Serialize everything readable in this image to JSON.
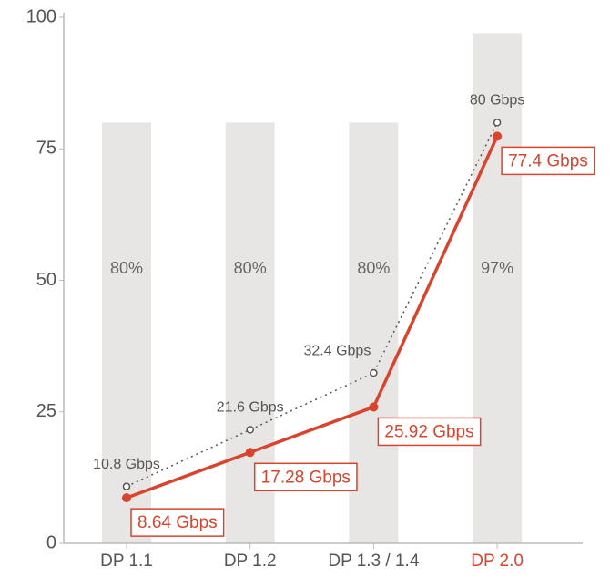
{
  "chart_data": {
    "type": "combo",
    "categories": [
      "DP 1.1",
      "DP 1.2",
      "DP 1.3 / 1.4",
      "DP 2.0"
    ],
    "category_label_colors": [
      "#555555",
      "#555555",
      "#555555",
      "#d9442f"
    ],
    "ylim": [
      0,
      100
    ],
    "yticks": [
      0,
      25,
      50,
      75,
      100
    ],
    "series": [
      {
        "type": "bar",
        "color": "#e8e6e4",
        "values": [
          80,
          80,
          80,
          97
        ],
        "value_labels": [
          "80%",
          "80%",
          "80%",
          "97%"
        ]
      },
      {
        "type": "dotted-line",
        "color": "#555555",
        "values": [
          10.8,
          21.6,
          32.4,
          80
        ],
        "value_labels": [
          "10.8 Gbps",
          "21.6 Gbps",
          "32.4 Gbps",
          "80 Gbps"
        ]
      },
      {
        "type": "line",
        "color": "#d9442f",
        "values": [
          8.64,
          17.28,
          25.92,
          77.4
        ],
        "value_labels": [
          "8.64 Gbps",
          "17.28 Gbps",
          "25.92 Gbps",
          "77.4 Gbps"
        ]
      }
    ]
  }
}
